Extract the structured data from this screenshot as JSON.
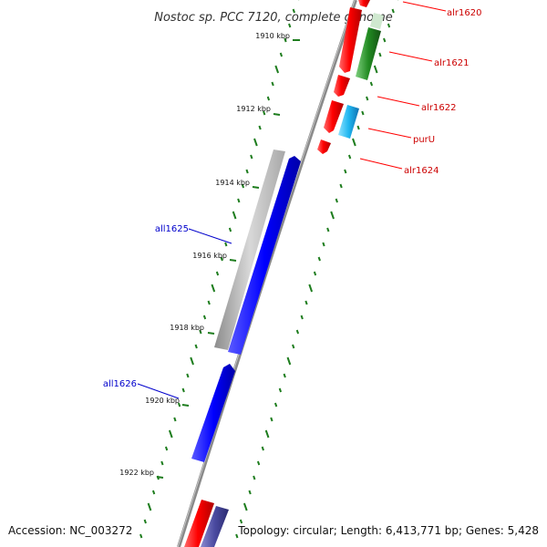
{
  "title": "Nostoc sp. PCC 7120, complete genome",
  "accession_text": "Accession: NC_003272",
  "topology_text": "Topology: circular; Length: 6,413,771 bp; Genes: 5,428",
  "colors": {
    "backbone": "#8a8a8a",
    "tick_marks": "#1e7d1e",
    "reverse_strand_gene": "#0000ff",
    "forward_strand_gene": "#ff0000",
    "purU_gene": "#33bbee",
    "alr1621_gene": "#228b22",
    "pseudo_or_other_gene": "#b0b0b0",
    "label_forward": "#cc0000",
    "label_reverse": "#0000cc"
  },
  "ticks": [
    {
      "label": "1910 kbp"
    },
    {
      "label": "1912 kbp"
    },
    {
      "label": "1914 kbp"
    },
    {
      "label": "1916 kbp"
    },
    {
      "label": "1918 kbp"
    },
    {
      "label": "1920 kbp"
    },
    {
      "label": "1922 kbp"
    }
  ],
  "genes": [
    {
      "label": "alr1620",
      "strand": "forward"
    },
    {
      "label": "alr1621",
      "strand": "forward"
    },
    {
      "label": "alr1622",
      "strand": "forward"
    },
    {
      "label": "purU",
      "strand": "forward"
    },
    {
      "label": "alr1624",
      "strand": "forward"
    },
    {
      "label": "all1625",
      "strand": "reverse"
    },
    {
      "label": "all1626",
      "strand": "reverse"
    }
  ]
}
